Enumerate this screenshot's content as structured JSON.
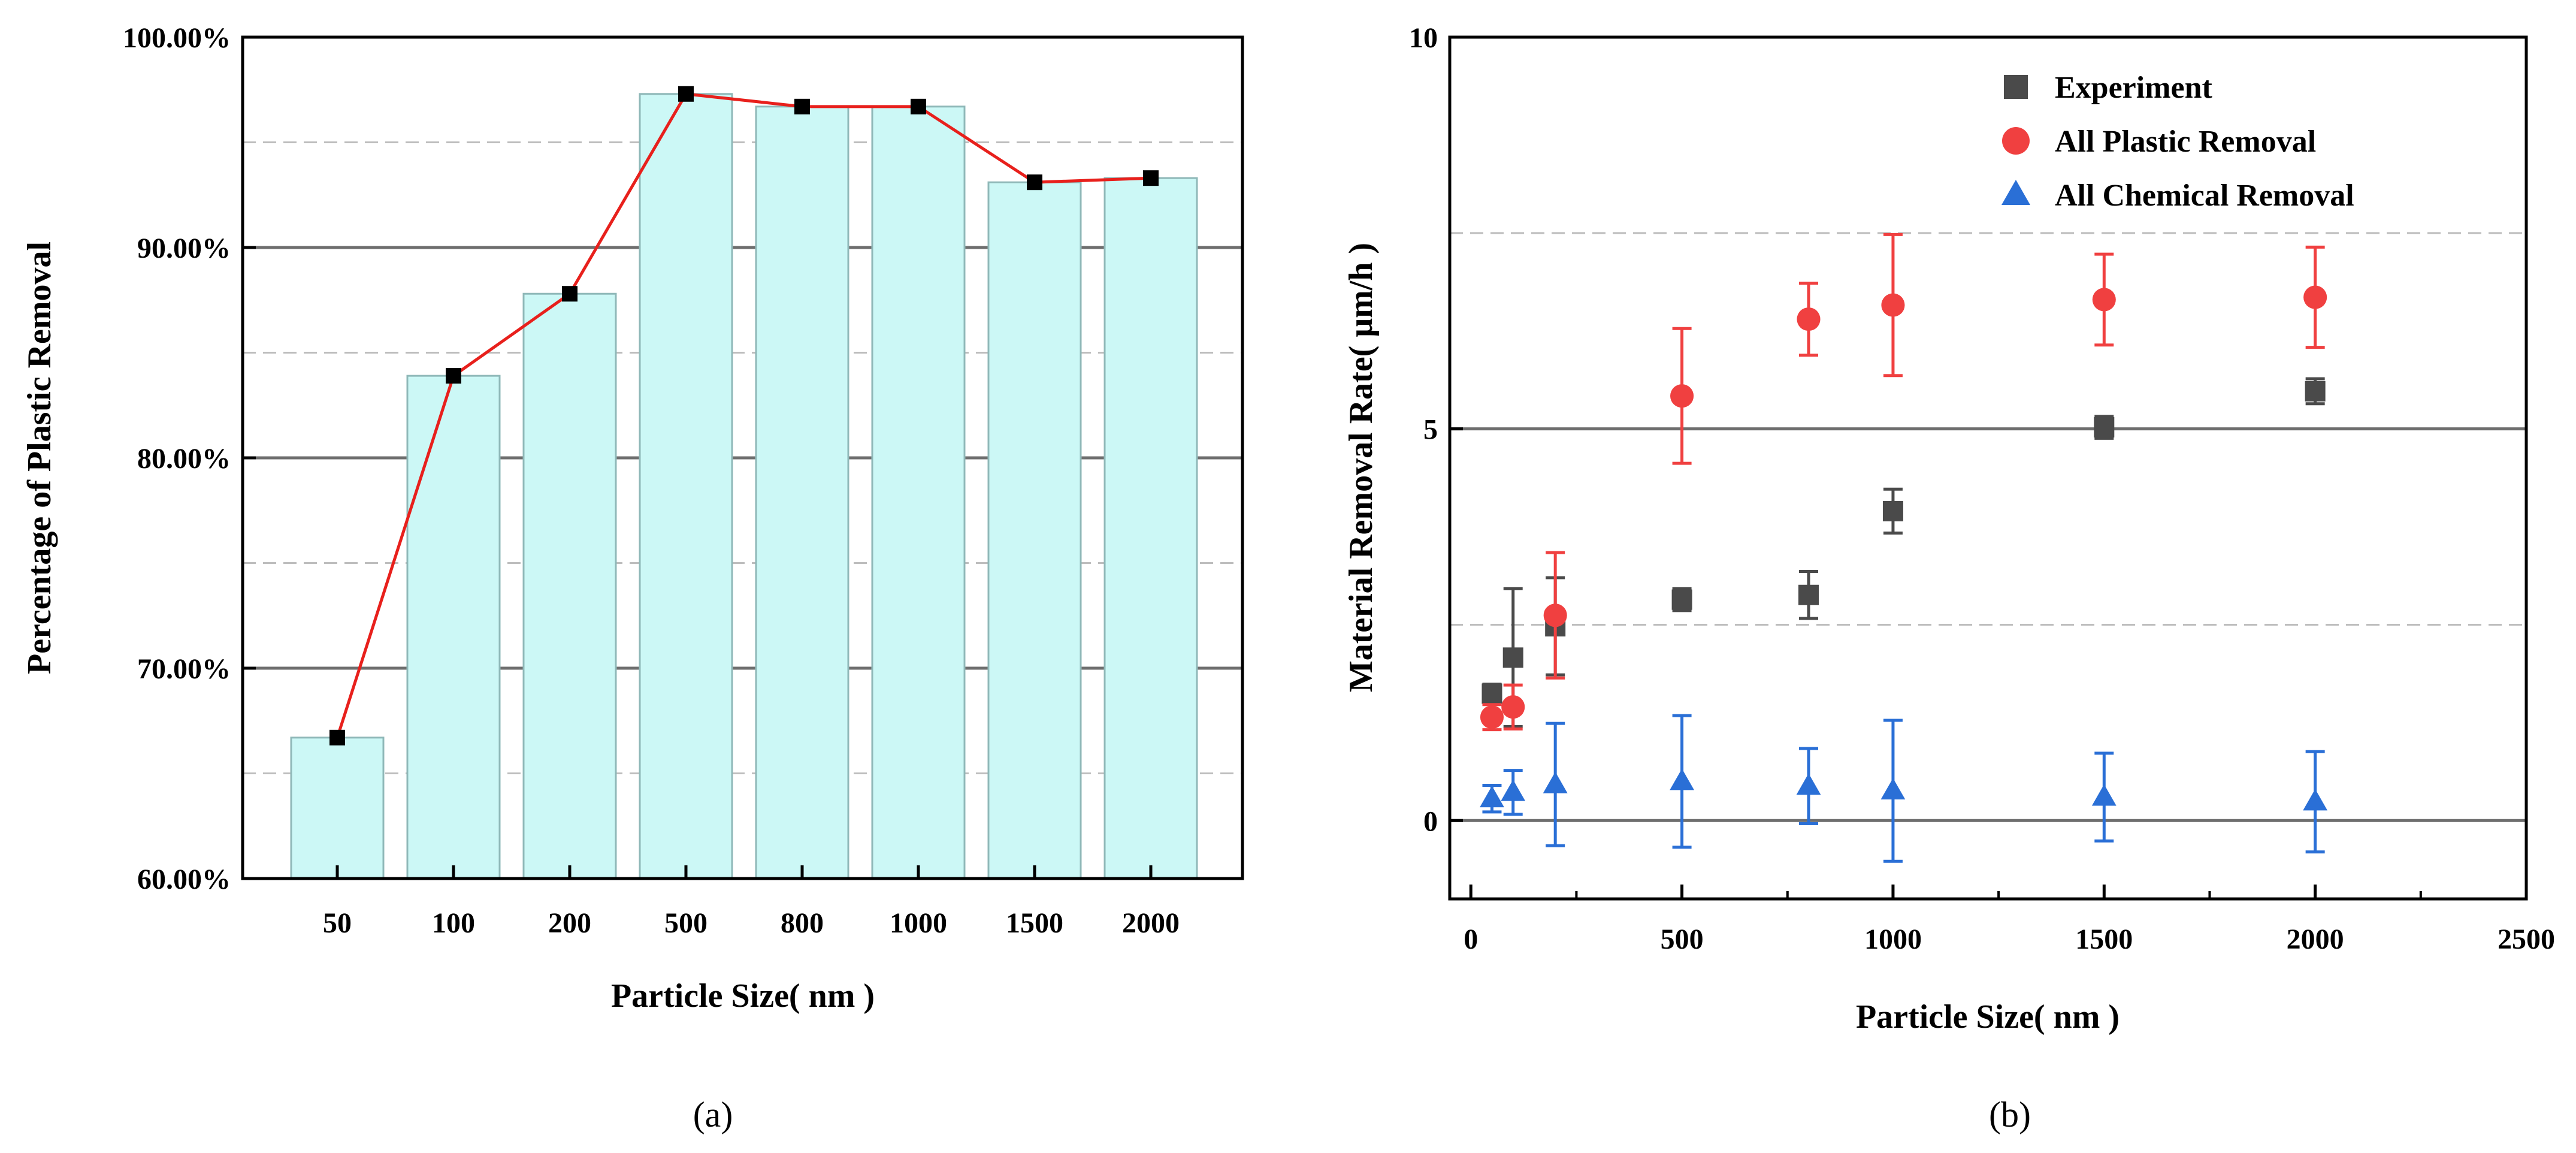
{
  "chart_data": [
    {
      "id": "a",
      "type": "bar",
      "caption": "(a)",
      "xlabel": "Particle Size( nm )",
      "ylabel": "Percentage of Plastic Removal",
      "categories": [
        "50",
        "100",
        "200",
        "500",
        "800",
        "1000",
        "1500",
        "2000"
      ],
      "values": [
        66.7,
        83.9,
        87.8,
        97.3,
        96.7,
        96.7,
        93.1,
        93.3
      ],
      "line_values": [
        66.7,
        83.9,
        87.8,
        97.3,
        96.7,
        96.7,
        93.1,
        93.3
      ],
      "ylim": [
        60,
        100
      ],
      "yticks": [
        60,
        70,
        80,
        90,
        100
      ],
      "ytick_labels": [
        "60.00%",
        "70.00%",
        "80.00%",
        "90.00%",
        "100.00%"
      ],
      "major_grid": [
        70,
        80,
        90
      ],
      "minor_grid": [
        65,
        75,
        85,
        95
      ],
      "colors": {
        "bar_fill": "#ccf8f6",
        "bar_edge": "#8fb8b8",
        "line": "#e8201c",
        "marker": "#000000"
      }
    },
    {
      "id": "b",
      "type": "scatter",
      "caption": "(b)",
      "xlabel": "Particle Size( nm )",
      "ylabel": "Material Removal Rate( μm/h )",
      "xlim": [
        -50,
        2500
      ],
      "ylim": [
        -1,
        10
      ],
      "xticks": [
        0,
        500,
        1000,
        1500,
        2000,
        2500
      ],
      "xtick_labels": [
        "0",
        "500",
        "1000",
        "1500",
        "2000",
        "2500"
      ],
      "yticks": [
        0,
        5,
        10
      ],
      "ytick_labels": [
        "0",
        "5",
        "10"
      ],
      "major_grid": [
        0,
        5
      ],
      "minor_grid": [
        2.5,
        7.5
      ],
      "legend_position": "top-right",
      "series": [
        {
          "name": "Experiment",
          "marker": "square",
          "color": "#4a4a4a",
          "x": [
            50,
            100,
            200,
            500,
            800,
            1000,
            1500,
            2000
          ],
          "y": [
            1.62,
            2.08,
            2.48,
            2.82,
            2.88,
            3.95,
            5.02,
            5.48
          ],
          "err": [
            0.12,
            0.88,
            0.62,
            0.14,
            0.3,
            0.28,
            0.14,
            0.16
          ]
        },
        {
          "name": "All Plastic Removal",
          "marker": "circle",
          "color": "#f04040",
          "x": [
            50,
            100,
            200,
            500,
            800,
            1000,
            1500,
            2000
          ],
          "y": [
            1.32,
            1.45,
            2.62,
            5.42,
            6.4,
            6.58,
            6.65,
            6.68
          ],
          "err": [
            0.16,
            0.28,
            0.8,
            0.86,
            0.46,
            0.9,
            0.58,
            0.64
          ]
        },
        {
          "name": "All Chemical Removal",
          "marker": "triangle",
          "color": "#2a6fd6",
          "x": [
            50,
            100,
            200,
            500,
            800,
            1000,
            1500,
            2000
          ],
          "y": [
            0.28,
            0.36,
            0.46,
            0.5,
            0.44,
            0.38,
            0.3,
            0.24
          ],
          "err": [
            0.17,
            0.28,
            0.78,
            0.84,
            0.48,
            0.9,
            0.56,
            0.64
          ]
        }
      ]
    }
  ]
}
